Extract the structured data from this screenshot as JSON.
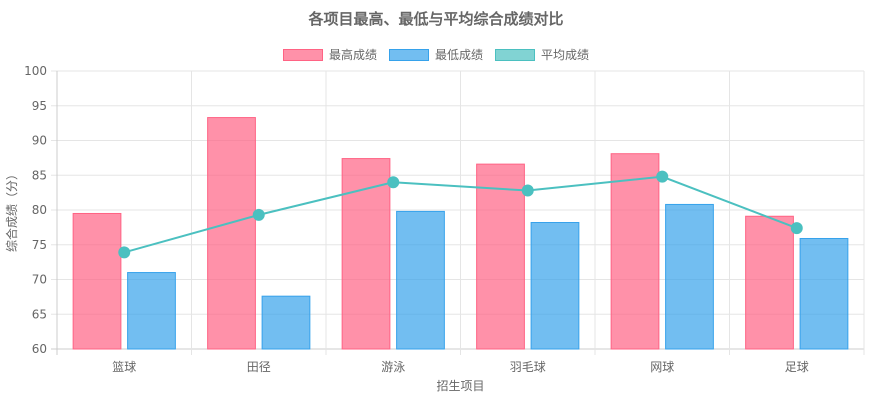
{
  "chart_data": {
    "type": "bar",
    "title": "各项目最高、最低与平均综合成绩对比",
    "xlabel": "招生项目",
    "ylabel": "综合成绩（分）",
    "ylim": [
      60,
      100
    ],
    "yticks": [
      60,
      65,
      70,
      75,
      80,
      85,
      90,
      95,
      100
    ],
    "categories": [
      "篮球",
      "田径",
      "游泳",
      "羽毛球",
      "网球",
      "足球"
    ],
    "legend_position": "top-center",
    "grid": true,
    "series": [
      {
        "name": "最高成绩",
        "kind": "bar",
        "color": "#ff6384",
        "values": [
          79.5,
          93.3,
          87.4,
          86.6,
          88.1,
          79.1
        ]
      },
      {
        "name": "最低成绩",
        "kind": "bar",
        "color": "#36a2eb",
        "values": [
          71.0,
          67.6,
          79.8,
          78.2,
          80.8,
          75.9
        ]
      },
      {
        "name": "平均成绩",
        "kind": "line",
        "color": "#4bc0c0",
        "values": [
          73.9,
          79.3,
          84.0,
          82.8,
          84.8,
          77.4
        ]
      }
    ]
  }
}
